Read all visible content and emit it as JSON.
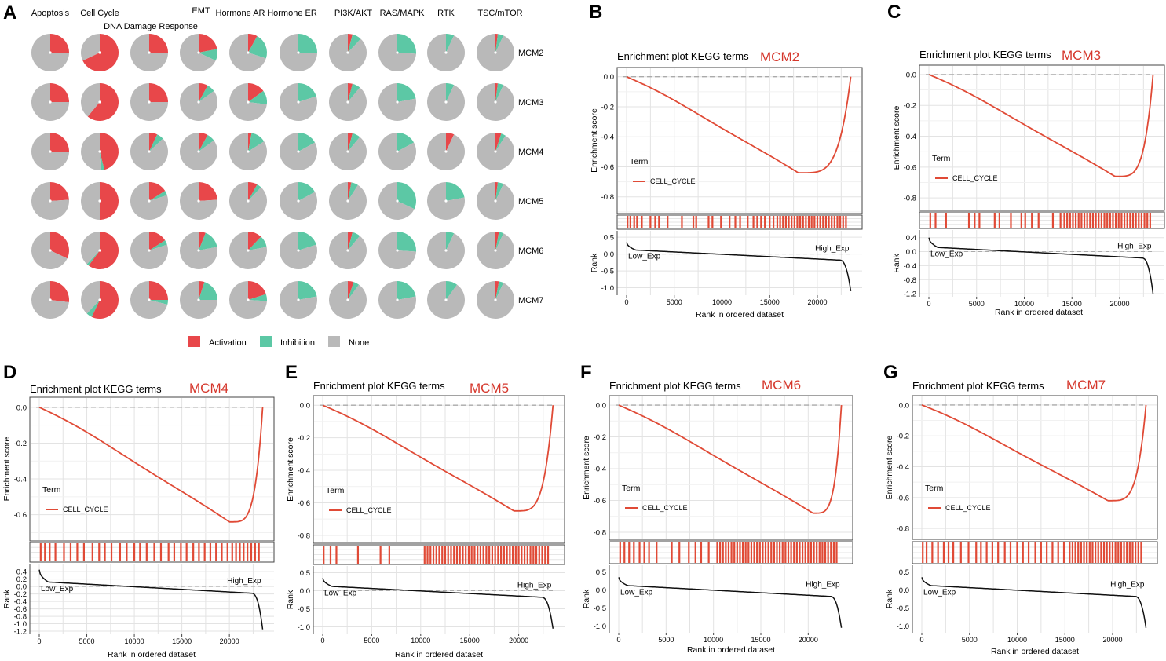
{
  "colors": {
    "activation": "#e8474a",
    "inhibition": "#5cc8a5",
    "none": "#b9b9b9",
    "curve": "#e04a36",
    "rank_line": "#111111",
    "grid": "#e3e3e3",
    "title_gene": "#d5372c"
  },
  "panel_a": {
    "letter": "A",
    "chart_data": {
      "type": "pie",
      "categories": [
        "Apoptosis",
        "Cell Cycle",
        "DNA Damage Response",
        "EMT",
        "Hormone AR",
        "Hormone ER",
        "PI3K/AKT",
        "RAS/MAPK",
        "RTK",
        "TSC/mTOR"
      ],
      "genes": [
        "MCM2",
        "MCM3",
        "MCM4",
        "MCM5",
        "MCM6",
        "MCM7"
      ],
      "fractions": [
        [
          [
            0.25,
            0,
            0.75
          ],
          [
            0.68,
            0,
            0.32
          ],
          [
            0.25,
            0,
            0.75
          ],
          [
            0.22,
            0.1,
            0.68
          ],
          [
            0.08,
            0.22,
            0.7
          ],
          [
            0,
            0.25,
            0.75
          ],
          [
            0.04,
            0.08,
            0.88
          ],
          [
            0,
            0.26,
            0.74
          ],
          [
            0,
            0.07,
            0.93
          ],
          [
            0.02,
            0.05,
            0.93
          ]
        ],
        [
          [
            0.25,
            0,
            0.75
          ],
          [
            0.61,
            0,
            0.39
          ],
          [
            0.25,
            0,
            0.75
          ],
          [
            0.08,
            0.07,
            0.85
          ],
          [
            0.15,
            0.12,
            0.73
          ],
          [
            0,
            0.2,
            0.8
          ],
          [
            0.04,
            0.07,
            0.89
          ],
          [
            0,
            0.22,
            0.78
          ],
          [
            0,
            0.07,
            0.93
          ],
          [
            0.02,
            0.05,
            0.93
          ]
        ],
        [
          [
            0.25,
            0,
            0.75
          ],
          [
            0.46,
            0.03,
            0.51
          ],
          [
            0.07,
            0.06,
            0.87
          ],
          [
            0.08,
            0.07,
            0.85
          ],
          [
            0.03,
            0.13,
            0.84
          ],
          [
            0,
            0.17,
            0.83
          ],
          [
            0.04,
            0.07,
            0.89
          ],
          [
            0,
            0.17,
            0.83
          ],
          [
            0.07,
            0,
            0.93
          ],
          [
            0.05,
            0.04,
            0.91
          ]
        ],
        [
          [
            0.24,
            0,
            0.76
          ],
          [
            0.5,
            0,
            0.5
          ],
          [
            0.16,
            0.04,
            0.8
          ],
          [
            0.24,
            0,
            0.76
          ],
          [
            0.08,
            0.04,
            0.88
          ],
          [
            0,
            0.17,
            0.83
          ],
          [
            0.03,
            0.06,
            0.91
          ],
          [
            0,
            0.32,
            0.68
          ],
          [
            0,
            0.22,
            0.78
          ],
          [
            0.02,
            0.05,
            0.93
          ]
        ],
        [
          [
            0.32,
            0,
            0.68
          ],
          [
            0.6,
            0.02,
            0.38
          ],
          [
            0.16,
            0.04,
            0.8
          ],
          [
            0.06,
            0.16,
            0.78
          ],
          [
            0.12,
            0.1,
            0.78
          ],
          [
            0,
            0.2,
            0.8
          ],
          [
            0.04,
            0.07,
            0.89
          ],
          [
            0,
            0.26,
            0.74
          ],
          [
            0,
            0.07,
            0.93
          ],
          [
            0.03,
            0.04,
            0.93
          ]
        ],
        [
          [
            0.27,
            0,
            0.73
          ],
          [
            0.57,
            0.05,
            0.38
          ],
          [
            0.25,
            0.04,
            0.71
          ],
          [
            0.05,
            0.2,
            0.75
          ],
          [
            0.2,
            0.06,
            0.74
          ],
          [
            0,
            0.22,
            0.78
          ],
          [
            0.05,
            0.05,
            0.9
          ],
          [
            0,
            0.22,
            0.78
          ],
          [
            0,
            0.1,
            0.9
          ],
          [
            0.03,
            0.04,
            0.93
          ]
        ]
      ],
      "legend": [
        "Activation",
        "Inhibition",
        "None"
      ]
    }
  },
  "gsea_common": {
    "title": "Enrichment plot KEGG terms",
    "y_label_top": "Enrichment score",
    "y_label_bottom": "Rank",
    "x_label": "Rank in ordered dataset",
    "legend_title": "Term",
    "legend_entry": "CELL_CYCLE",
    "low_label": "Low_Exp",
    "high_label": "High_Exp",
    "x_ticks": [
      "0",
      "5000",
      "10000",
      "15000",
      "20000"
    ]
  },
  "gsea_panels": [
    {
      "letter": "B",
      "gene": "MCM2",
      "min_x": 18000,
      "min_y": -0.64,
      "es_ticks": [
        "0.0",
        "-0.2",
        "-0.4",
        "-0.6",
        "-0.8"
      ],
      "es_ylim": [
        -0.88,
        0.03
      ],
      "rank_ticks": [
        "0.5",
        "0.0",
        "-0.5",
        "-1.0"
      ],
      "rank_ylim": [
        -1.15,
        0.62
      ],
      "rank_start": 0.35,
      "rank_end": -1.1,
      "hits": [
        100,
        400,
        800,
        1100,
        1600,
        2500,
        3000,
        3400,
        4300,
        5800,
        7000,
        7300,
        8600,
        9000,
        9900,
        10800,
        11400,
        11900,
        12700,
        13300,
        13700,
        14100,
        14500,
        15000,
        15400,
        15800,
        16100,
        16400,
        16700,
        17000,
        17300,
        17600,
        17900,
        18200,
        18500,
        18800,
        19100,
        19400,
        19700,
        20000,
        20300,
        20600,
        20900,
        21200,
        21500,
        21800,
        22100,
        22400,
        22700,
        23000
      ]
    },
    {
      "letter": "C",
      "gene": "MCM3",
      "min_x": 19500,
      "min_y": -0.66,
      "es_ticks": [
        "0.0",
        "-0.2",
        "-0.4",
        "-0.6",
        "-0.8"
      ],
      "es_ylim": [
        -0.85,
        0.03
      ],
      "rank_ticks": [
        "0.4",
        "0.0",
        "-0.4",
        "-0.8",
        "-1.2"
      ],
      "rank_ylim": [
        -1.22,
        0.55
      ],
      "rank_start": 0.4,
      "rank_end": -1.2,
      "hits": [
        150,
        700,
        1800,
        4200,
        4800,
        5300,
        6900,
        7400,
        8600,
        9700,
        10100,
        10800,
        11500,
        13000,
        13800,
        14200,
        14500,
        14800,
        15100,
        15400,
        15700,
        16000,
        16300,
        16600,
        16900,
        17200,
        17500,
        17800,
        18100,
        18400,
        18700,
        19000,
        19300,
        19600,
        19900,
        20200,
        20500,
        20800,
        21100,
        21400,
        21700,
        22000,
        22300,
        22600,
        22900,
        23200
      ]
    },
    {
      "letter": "D",
      "gene": "MCM4",
      "min_x": 20000,
      "min_y": -0.64,
      "es_ticks": [
        "0.0",
        "-0.2",
        "-0.4",
        "-0.6"
      ],
      "es_ylim": [
        -0.72,
        0.03
      ],
      "rank_ticks": [
        "0.4",
        "0.2",
        "0.0",
        "-0.2",
        "-0.4",
        "-0.6",
        "-0.8",
        "-1.0",
        "-1.2"
      ],
      "rank_ylim": [
        -1.22,
        0.55
      ],
      "rank_start": 0.45,
      "rank_end": -1.15,
      "hits": [
        150,
        600,
        1100,
        1700,
        2600,
        3300,
        4000,
        4700,
        5600,
        6300,
        6900,
        7600,
        8500,
        9200,
        10000,
        10600,
        11300,
        12100,
        12800,
        13600,
        14200,
        14900,
        15500,
        16200,
        16800,
        17400,
        18000,
        18600,
        19200,
        19800,
        20300,
        20700,
        21100,
        21500,
        21900,
        22300,
        22700,
        23100
      ]
    },
    {
      "letter": "E",
      "gene": "MCM5",
      "min_x": 19500,
      "min_y": -0.65,
      "es_ticks": [
        "0.0",
        "-0.2",
        "-0.4",
        "-0.6",
        "-0.8"
      ],
      "es_ylim": [
        -0.82,
        0.03
      ],
      "rank_ticks": [
        "0.5",
        "0.0",
        "-0.5",
        "-1.0"
      ],
      "rank_ylim": [
        -1.12,
        0.62
      ],
      "rank_start": 0.35,
      "rank_end": -1.05,
      "hits": [
        100,
        800,
        1400,
        3600,
        5900,
        6800,
        10400,
        10700,
        11000,
        11300,
        11600,
        11900,
        12200,
        12500,
        12800,
        13100,
        13400,
        13700,
        14000,
        14300,
        14600,
        14900,
        15200,
        15500,
        15800,
        16100,
        16400,
        16700,
        17000,
        17300,
        17600,
        17900,
        18200,
        18500,
        18800,
        19100,
        19400,
        19700,
        20000,
        20300,
        20600,
        20900,
        21200,
        21500,
        21800,
        22100,
        22400,
        22700,
        23000
      ]
    },
    {
      "letter": "F",
      "gene": "MCM6",
      "min_x": 20500,
      "min_y": -0.68,
      "es_ticks": [
        "0.0",
        "-0.2",
        "-0.4",
        "-0.6",
        "-0.8"
      ],
      "es_ylim": [
        -0.82,
        0.03
      ],
      "rank_ticks": [
        "0.5",
        "0.0",
        "-0.5",
        "-1.0"
      ],
      "rank_ylim": [
        -1.12,
        0.62
      ],
      "rank_start": 0.35,
      "rank_end": -1.05,
      "hits": [
        150,
        600,
        1100,
        1600,
        2200,
        2700,
        3200,
        4000,
        5600,
        6400,
        7400,
        8100,
        8700,
        9500,
        10400,
        10700,
        11000,
        11300,
        11600,
        11900,
        12200,
        12500,
        12800,
        13100,
        13400,
        13700,
        14000,
        14300,
        14600,
        14900,
        15200,
        15500,
        15800,
        16100,
        16400,
        16700,
        17000,
        17300,
        17600,
        17900,
        18200,
        18500,
        18800,
        19100,
        19400,
        19700,
        20000,
        20300,
        20600,
        20900,
        21200,
        21500,
        21800,
        22100,
        22400,
        22700,
        23000
      ]
    },
    {
      "letter": "G",
      "gene": "MCM7",
      "min_x": 19500,
      "min_y": -0.62,
      "es_ticks": [
        "0.0",
        "-0.2",
        "-0.4",
        "-0.6",
        "-0.8"
      ],
      "es_ylim": [
        -0.84,
        0.03
      ],
      "rank_ticks": [
        "0.5",
        "0.0",
        "-0.5",
        "-1.0"
      ],
      "rank_ylim": [
        -1.12,
        0.62
      ],
      "rank_start": 0.35,
      "rank_end": -1.05,
      "hits": [
        100,
        500,
        1100,
        1700,
        2300,
        2800,
        3300,
        4100,
        4900,
        5700,
        6200,
        6800,
        7400,
        8000,
        8700,
        9300,
        10000,
        10600,
        11200,
        11900,
        12500,
        13100,
        13700,
        14300,
        14900,
        15500,
        15800,
        16100,
        16400,
        16700,
        17000,
        17300,
        17600,
        17900,
        18200,
        18500,
        18800,
        19100,
        19400,
        19700,
        20000,
        20300,
        20600,
        20900,
        21200,
        21500,
        21800,
        22100,
        22400,
        22700,
        23000
      ]
    }
  ]
}
